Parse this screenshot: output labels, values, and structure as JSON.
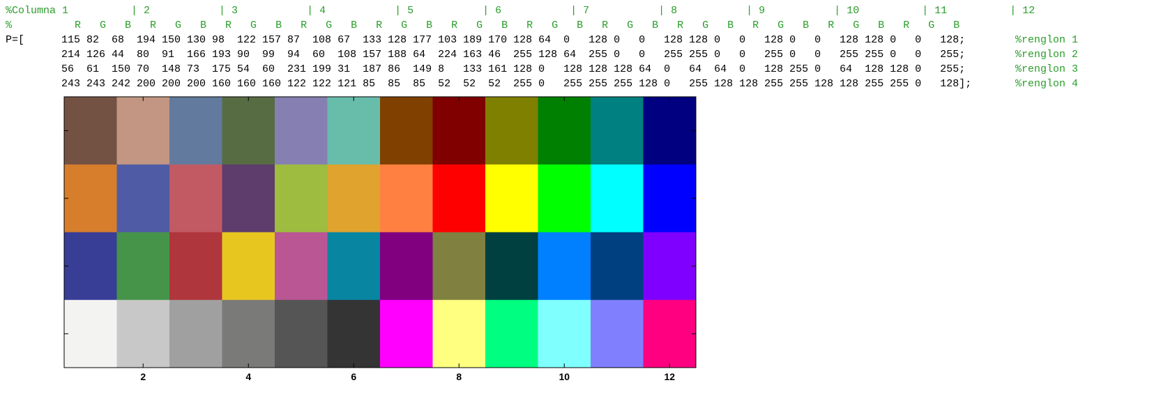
{
  "code_header": {
    "columns_line": "%Columna 1          | 2           | 3           | 4           | 5           | 6           | 7           | 8           | 9           | 10          | 11          | 12",
    "rgb_line": "%          R   G   B   R   G   B   R   G   B   R   G   B   R   G   B   R   G   B   R   G   B   R   G   B   R   G   B   R   G   B   R   G   B   R   G   B",
    "rows": [
      {
        "prefix": "P=[",
        "values": "115 82  68  194 150 130 98  122 157 87  108 67  133 128 177 103 189 170 128 64  0   128 0   0   128 128 0   0   128 0   0   128 128 0   0   128;",
        "comment": "%renglon 1"
      },
      {
        "prefix": "",
        "values": "214 126 44  80  91  166 193 90  99  94  60  108 157 188 64  224 163 46  255 128 64  255 0   0   255 255 0   0   255 0   0   255 255 0   0   255;",
        "comment": "%renglon 2"
      },
      {
        "prefix": "",
        "values": "56  61  150 70  148 73  175 54  60  231 199 31  187 86  149 8   133 161 128 0   128 128 128 64  0   64  64  0   128 255 0   64  128 128 0   255;",
        "comment": "%renglon 3"
      },
      {
        "prefix": "",
        "values": "243 243 242 200 200 200 160 160 160 122 122 121 85  85  85  52  52  52  255 0   255 255 255 128 0   255 128 128 255 255 128 128 255 255 0   128];",
        "comment": "%renglon 4"
      }
    ]
  },
  "chart_data": {
    "type": "heatmap",
    "title": "",
    "xlabel": "",
    "ylabel": "",
    "xlim": [
      0.5,
      12.5
    ],
    "ylim": [
      0.5,
      4.5
    ],
    "xticks": [
      2,
      4,
      6,
      8,
      10,
      12
    ],
    "yticks": [
      1,
      2,
      3,
      4
    ],
    "show_ytick_labels": false,
    "grid": false,
    "rows": [
      [
        "#735244",
        "#c29682",
        "#627a9d",
        "#576c43",
        "#8580b1",
        "#67bdaa",
        "#804000",
        "#800000",
        "#808000",
        "#008000",
        "#008080",
        "#000080"
      ],
      [
        "#d67e2c",
        "#505ba6",
        "#c15a63",
        "#5e3c6c",
        "#9dbc40",
        "#e0a32e",
        "#ff8040",
        "#ff0000",
        "#ffff00",
        "#00ff00",
        "#00ffff",
        "#0000ff"
      ],
      [
        "#383d96",
        "#469449",
        "#af363c",
        "#e7c71f",
        "#bb5695",
        "#0885a1",
        "#800080",
        "#808040",
        "#004040",
        "#0080ff",
        "#004080",
        "#8000ff"
      ],
      [
        "#f3f3f2",
        "#c8c8c8",
        "#a0a0a0",
        "#7a7a79",
        "#555555",
        "#343434",
        "#ff00ff",
        "#ffff80",
        "#00ff80",
        "#80ffff",
        "#8080ff",
        "#ff0080"
      ]
    ]
  }
}
